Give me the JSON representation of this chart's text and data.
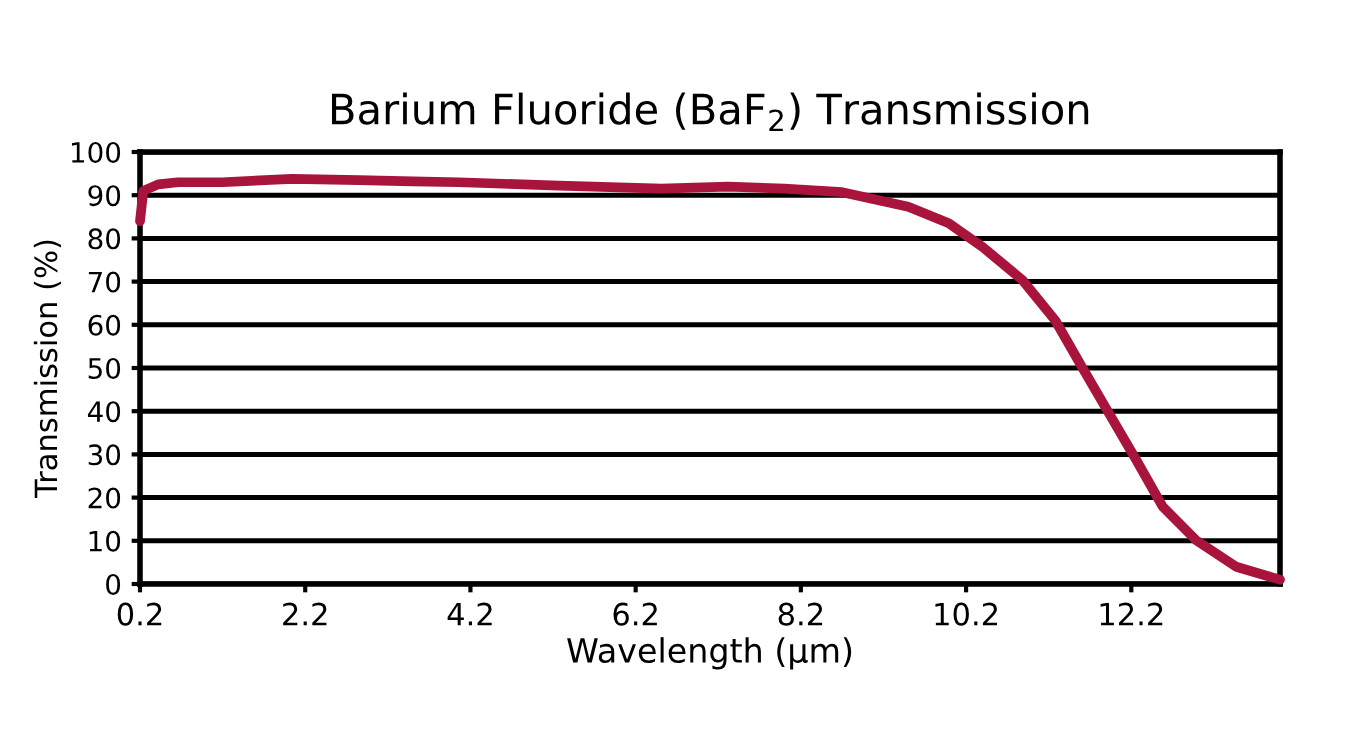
{
  "chart_data": {
    "type": "line",
    "title": "Barium Fluoride (BaF$_{2}$) Transmission",
    "xlabel": "Wavelength (µm)",
    "ylabel": "Transmission (%)",
    "series": [
      {
        "color": "#a8143c",
        "x": [
          0.2,
          0.24,
          0.42,
          0.66,
          1.2,
          2.04,
          2.85,
          3.5,
          4.06,
          5.27,
          6.51,
          7.32,
          8.0,
          8.7,
          9.5,
          9.99,
          10.4,
          10.88,
          11.28,
          11.6,
          11.93,
          12.26,
          12.58,
          12.98,
          13.47,
          14.0
        ],
        "values": [
          84,
          91,
          92.5,
          93,
          93,
          93.8,
          93.5,
          93.2,
          93,
          92.2,
          91.5,
          92,
          91.5,
          90.7,
          87.3,
          83.5,
          78,
          70.4,
          61,
          50.3,
          39.5,
          28.7,
          17.9,
          10.2,
          4,
          1
        ]
      }
    ],
    "xlim": [
      0.2,
      14.0
    ],
    "xticks": [
      0.2,
      2.2,
      4.2,
      6.2,
      8.2,
      10.2,
      12.2
    ],
    "ylim": [
      0,
      100
    ],
    "yticks": [
      0,
      10,
      20,
      30,
      40,
      50,
      60,
      70,
      80,
      90,
      100
    ],
    "grid": "y",
    "line_style": "solid",
    "marker": "none",
    "legend": false
  }
}
